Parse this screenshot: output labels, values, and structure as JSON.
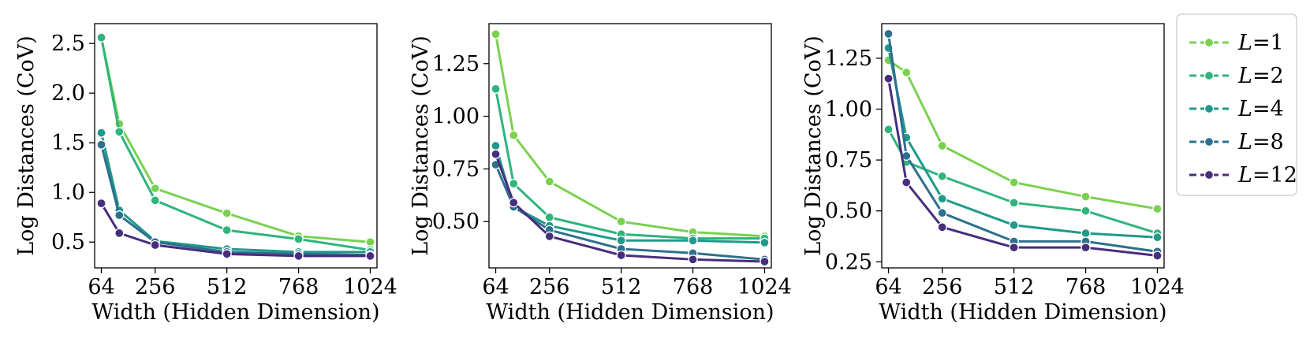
{
  "chart_data": [
    {
      "type": "line",
      "xlabel": "Width (Hidden Dimension)",
      "ylabel": "Log Distances (CoV)",
      "xlim": [
        40,
        1048
      ],
      "ylim": [
        0.24,
        2.7
      ],
      "xticks": [
        64,
        256,
        512,
        768,
        1024
      ],
      "yticks": [
        0.5,
        1.0,
        1.5,
        2.0,
        2.5
      ],
      "ytick_labels": [
        "0.5",
        "1.0",
        "1.5",
        "2.0",
        "2.5"
      ],
      "x": [
        64,
        128,
        256,
        512,
        768,
        1024
      ],
      "series": [
        {
          "name": "L=1",
          "values": [
            2.56,
            1.69,
            1.04,
            0.79,
            0.56,
            0.5
          ]
        },
        {
          "name": "L=2",
          "values": [
            2.56,
            1.61,
            0.92,
            0.62,
            0.53,
            0.42
          ]
        },
        {
          "name": "L=4",
          "values": [
            1.6,
            0.82,
            0.51,
            0.43,
            0.4,
            0.4
          ]
        },
        {
          "name": "L=8",
          "values": [
            1.48,
            0.77,
            0.5,
            0.4,
            0.38,
            0.37
          ]
        },
        {
          "name": "L=12",
          "values": [
            0.89,
            0.59,
            0.47,
            0.38,
            0.36,
            0.36
          ]
        }
      ]
    },
    {
      "type": "line",
      "xlabel": "Width (Hidden Dimension)",
      "ylabel": "Log Distances (CoV)",
      "xlim": [
        40,
        1048
      ],
      "ylim": [
        0.28,
        1.44
      ],
      "xticks": [
        64,
        256,
        512,
        768,
        1024
      ],
      "yticks": [
        0.5,
        0.75,
        1.0,
        1.25
      ],
      "ytick_labels": [
        "0.50",
        "0.75",
        "1.00",
        "1.25"
      ],
      "x": [
        64,
        128,
        256,
        512,
        768,
        1024
      ],
      "series": [
        {
          "name": "L=1",
          "values": [
            1.39,
            0.91,
            0.69,
            0.5,
            0.45,
            0.43
          ]
        },
        {
          "name": "L=2",
          "values": [
            1.13,
            0.68,
            0.52,
            0.44,
            0.42,
            0.42
          ]
        },
        {
          "name": "L=4",
          "values": [
            0.86,
            0.57,
            0.48,
            0.41,
            0.41,
            0.4
          ]
        },
        {
          "name": "L=8",
          "values": [
            0.77,
            0.57,
            0.46,
            0.37,
            0.35,
            0.32
          ]
        },
        {
          "name": "L=12",
          "values": [
            0.82,
            0.59,
            0.43,
            0.34,
            0.32,
            0.31
          ]
        }
      ]
    },
    {
      "type": "line",
      "xlabel": "Width (Hidden Dimension)",
      "ylabel": "Log Distances (CoV)",
      "xlim": [
        40,
        1048
      ],
      "ylim": [
        0.22,
        1.42
      ],
      "xticks": [
        64,
        256,
        512,
        768,
        1024
      ],
      "yticks": [
        0.25,
        0.5,
        0.75,
        1.0,
        1.25
      ],
      "ytick_labels": [
        "0.25",
        "0.50",
        "0.75",
        "1.00",
        "1.25"
      ],
      "x": [
        64,
        128,
        256,
        512,
        768,
        1024
      ],
      "series": [
        {
          "name": "L=1",
          "values": [
            1.24,
            1.18,
            0.82,
            0.64,
            0.57,
            0.51
          ]
        },
        {
          "name": "L=2",
          "values": [
            0.9,
            0.74,
            0.67,
            0.54,
            0.5,
            0.39
          ]
        },
        {
          "name": "L=4",
          "values": [
            1.3,
            0.86,
            0.56,
            0.43,
            0.39,
            0.37
          ]
        },
        {
          "name": "L=8",
          "values": [
            1.37,
            0.77,
            0.49,
            0.35,
            0.35,
            0.3
          ]
        },
        {
          "name": "L=12",
          "values": [
            1.15,
            0.64,
            0.42,
            0.32,
            0.32,
            0.28
          ]
        }
      ]
    }
  ],
  "legend": {
    "placement": "right",
    "entries": [
      {
        "prefix": "L",
        "suffix": "=1",
        "color": "#7ad151"
      },
      {
        "prefix": "L",
        "suffix": "=2",
        "color": "#2fb47c"
      },
      {
        "prefix": "L",
        "suffix": "=4",
        "color": "#1f9a8a"
      },
      {
        "prefix": "L",
        "suffix": "=8",
        "color": "#2d708e"
      },
      {
        "prefix": "L",
        "suffix": "=12",
        "color": "#472d7b"
      }
    ]
  }
}
